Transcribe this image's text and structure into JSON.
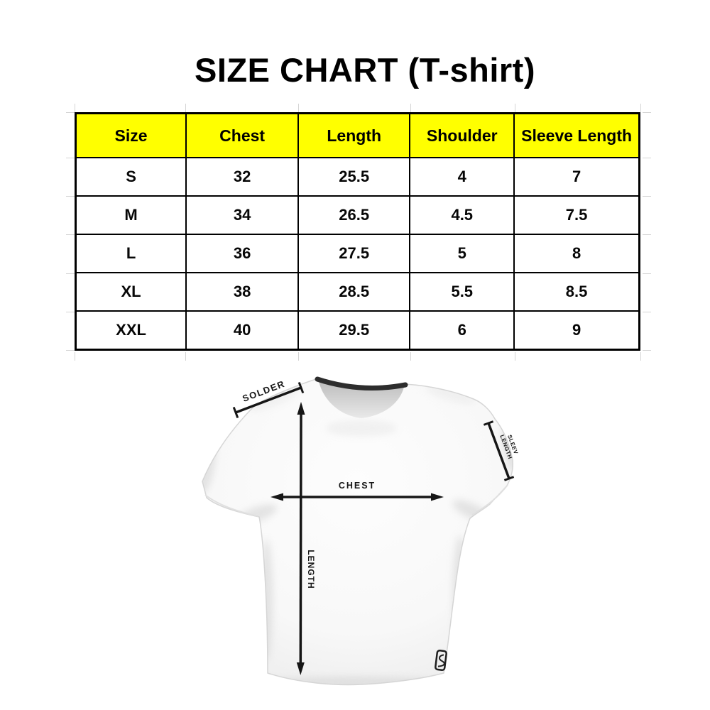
{
  "title": "SIZE CHART (T-shirt)",
  "chart_data": {
    "type": "table",
    "title": "SIZE CHART (T-shirt)",
    "columns": [
      "Size",
      "Chest",
      "Length",
      "Shoulder",
      "Sleeve Length"
    ],
    "rows": [
      [
        "S",
        "32",
        "25.5",
        "4",
        "7"
      ],
      [
        "M",
        "34",
        "26.5",
        "4.5",
        "7.5"
      ],
      [
        "L",
        "36",
        "27.5",
        "5",
        "8"
      ],
      [
        "XL",
        "38",
        "28.5",
        "5.5",
        "8.5"
      ],
      [
        "XXL",
        "40",
        "29.5",
        "6",
        "9"
      ]
    ],
    "header_bg": "#FFFF00",
    "header_text_color": "#000000",
    "grid": true,
    "legend_position": "none"
  },
  "diagram": {
    "shoulder_label": "SOLDER",
    "chest_label": "CHEST",
    "length_label": "LENGTH",
    "sleeve_label_line1": "SLEEV",
    "sleeve_label_line2": "LENGTH",
    "tag_letter": "S"
  },
  "colors": {
    "table_header_yellow": "#FFFF00",
    "table_border_black": "#000000",
    "measure_line_black": "#161616",
    "collar_dark": "#2d2d2d",
    "shirt_white": "#fafafa"
  }
}
